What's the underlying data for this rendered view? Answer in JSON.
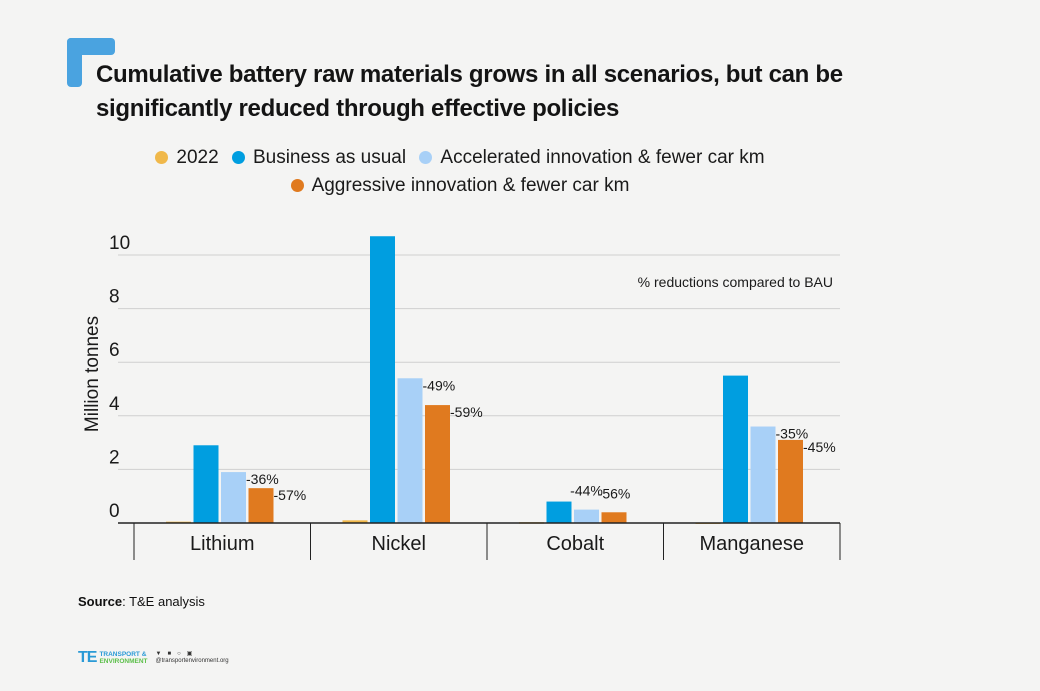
{
  "title": "Cumulative battery raw materials grows in all scenarios, but can be significantly reduced through effective policies",
  "legend": [
    {
      "label": "2022",
      "color": "#f0b84a"
    },
    {
      "label": "Business as usual",
      "color": "#009ee0"
    },
    {
      "label": "Accelerated innovation & fewer car km",
      "color": "#a8d0f7"
    },
    {
      "label": "Aggressive innovation & fewer car km",
      "color": "#e07a1f"
    }
  ],
  "annotation": "% reductions compared to BAU",
  "source_label": "Source",
  "source_text": ": T&E analysis",
  "logo": {
    "mark": "TE",
    "line1": "TRANSPORT &",
    "line2": "ENVIRONMENT",
    "website": "@transportenvironment.org",
    "social_icons": [
      "twitter-icon",
      "facebook-icon",
      "instagram-icon",
      "linkedin-icon"
    ]
  },
  "chart_data": {
    "type": "bar",
    "title": "Cumulative battery raw materials grows in all scenarios, but can be significantly reduced through effective policies",
    "xlabel": "",
    "ylabel": "Million tonnes",
    "ylim": [
      0,
      10.8
    ],
    "yticks": [
      0,
      2,
      4,
      6,
      8,
      10
    ],
    "grid": true,
    "legend_position": "top",
    "categories": [
      "Lithium",
      "Nickel",
      "Cobalt",
      "Manganese"
    ],
    "series": [
      {
        "name": "2022",
        "color": "#f0b84a",
        "values": [
          0.05,
          0.1,
          0.03,
          0.02
        ]
      },
      {
        "name": "Business as usual",
        "color": "#009ee0",
        "values": [
          2.9,
          10.7,
          0.8,
          5.5
        ]
      },
      {
        "name": "Accelerated innovation & fewer car km",
        "color": "#a8d0f7",
        "values": [
          1.9,
          5.4,
          0.5,
          3.6
        ]
      },
      {
        "name": "Aggressive innovation & fewer car km",
        "color": "#e07a1f",
        "values": [
          1.3,
          4.4,
          0.4,
          3.1
        ]
      }
    ],
    "data_labels": {
      "Accelerated innovation & fewer car km": [
        "-36%",
        "-49%",
        "-44%",
        "-35%"
      ],
      "Aggressive innovation & fewer car km": [
        "-57%",
        "-59%",
        "-56%",
        "-45%"
      ]
    }
  }
}
